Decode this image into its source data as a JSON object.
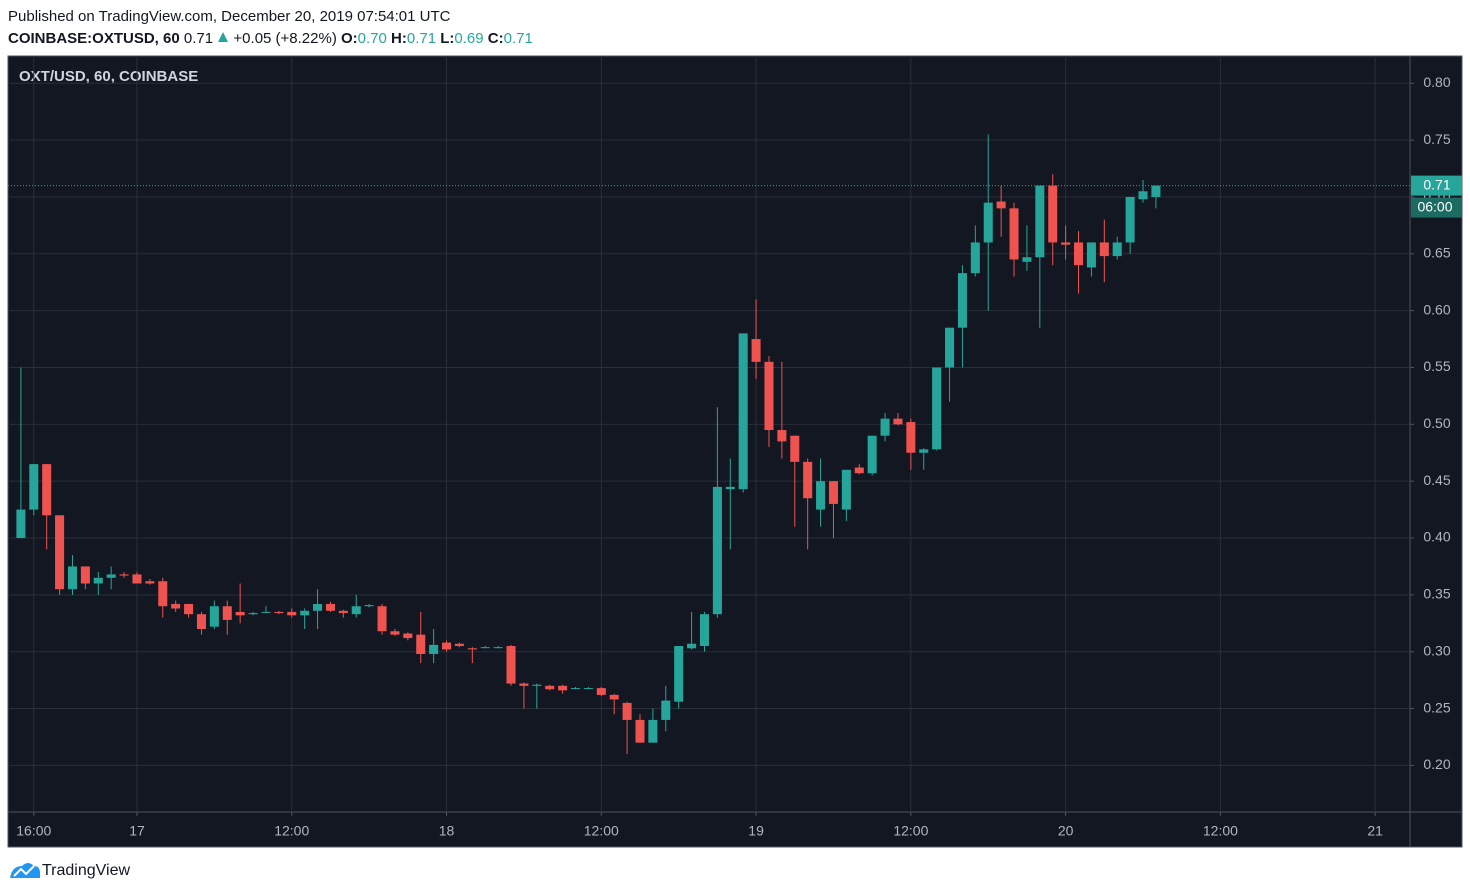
{
  "header": {
    "published": "Published on TradingView.com, December 20, 2019 07:54:01 UTC",
    "symbol": "COINBASE:OXTUSD, 60",
    "last": "0.71",
    "change": "+0.05 (+8.22%)",
    "ohlc": [
      {
        "label": "O:",
        "value": "0.70"
      },
      {
        "label": "H:",
        "value": "0.71"
      },
      {
        "label": "L:",
        "value": "0.69"
      },
      {
        "label": "C:",
        "value": "0.71"
      }
    ]
  },
  "chart_data": {
    "type": "candlestick",
    "title": "OXT/USD, 60, COINBASE",
    "x": [
      15,
      16,
      17,
      18,
      19,
      20,
      21,
      22,
      23,
      24,
      25,
      26,
      27,
      28,
      29,
      30,
      31,
      32,
      33,
      34,
      35,
      36,
      37,
      38,
      39,
      40,
      41,
      42,
      43,
      44,
      45,
      46,
      47,
      48,
      49,
      50,
      51,
      52,
      53,
      54,
      55,
      56,
      57,
      58,
      59,
      60,
      61,
      62,
      63,
      64,
      65,
      66,
      67,
      68,
      69,
      70,
      71,
      72,
      73,
      74,
      75,
      76,
      77,
      78,
      79,
      80,
      81,
      82,
      83,
      84,
      85,
      86,
      87,
      88,
      89,
      90,
      91,
      92,
      93,
      94,
      95,
      96,
      97,
      98,
      99,
      100,
      101,
      102,
      103
    ],
    "open": [
      0.4,
      0.425,
      0.465,
      0.42,
      0.355,
      0.375,
      0.36,
      0.365,
      0.368,
      0.368,
      0.362,
      0.362,
      0.342,
      0.342,
      0.333,
      0.322,
      0.34,
      0.335,
      0.333,
      0.335,
      0.335,
      0.335,
      0.332,
      0.336,
      0.342,
      0.336,
      0.333,
      0.34,
      0.34,
      0.318,
      0.316,
      0.315,
      0.298,
      0.308,
      0.307,
      0.303,
      0.304,
      0.304,
      0.305,
      0.272,
      0.27,
      0.27,
      0.27,
      0.268,
      0.268,
      0.268,
      0.262,
      0.255,
      0.24,
      0.22,
      0.24,
      0.256,
      0.303,
      0.305,
      0.333,
      0.443,
      0.443,
      0.575,
      0.555,
      0.495,
      0.49,
      0.467,
      0.425,
      0.45,
      0.425,
      0.462,
      0.457,
      0.49,
      0.505,
      0.502,
      0.475,
      0.478,
      0.55,
      0.585,
      0.633,
      0.66,
      0.696,
      0.69,
      0.643,
      0.647,
      0.71,
      0.66,
      0.66,
      0.638,
      0.66,
      0.648,
      0.66,
      0.698,
      0.7
    ],
    "high": [
      0.55,
      0.465,
      0.465,
      0.42,
      0.385,
      0.375,
      0.37,
      0.375,
      0.37,
      0.37,
      0.364,
      0.365,
      0.345,
      0.342,
      0.335,
      0.345,
      0.345,
      0.36,
      0.335,
      0.34,
      0.336,
      0.338,
      0.338,
      0.355,
      0.344,
      0.337,
      0.35,
      0.342,
      0.342,
      0.32,
      0.317,
      0.335,
      0.32,
      0.31,
      0.308,
      0.304,
      0.305,
      0.305,
      0.306,
      0.273,
      0.272,
      0.271,
      0.271,
      0.269,
      0.269,
      0.269,
      0.263,
      0.256,
      0.245,
      0.25,
      0.27,
      0.305,
      0.335,
      0.335,
      0.515,
      0.47,
      0.58,
      0.61,
      0.56,
      0.555,
      0.49,
      0.47,
      0.47,
      0.45,
      0.46,
      0.465,
      0.49,
      0.51,
      0.51,
      0.505,
      0.479,
      0.55,
      0.585,
      0.64,
      0.675,
      0.755,
      0.71,
      0.695,
      0.675,
      0.71,
      0.72,
      0.675,
      0.67,
      0.66,
      0.68,
      0.665,
      0.7,
      0.715,
      0.71
    ],
    "low": [
      0.4,
      0.42,
      0.39,
      0.35,
      0.35,
      0.355,
      0.35,
      0.355,
      0.365,
      0.36,
      0.359,
      0.33,
      0.335,
      0.33,
      0.315,
      0.32,
      0.315,
      0.325,
      0.332,
      0.334,
      0.333,
      0.33,
      0.32,
      0.32,
      0.335,
      0.33,
      0.33,
      0.339,
      0.315,
      0.314,
      0.31,
      0.29,
      0.29,
      0.3,
      0.304,
      0.29,
      0.303,
      0.303,
      0.27,
      0.25,
      0.25,
      0.266,
      0.263,
      0.267,
      0.267,
      0.261,
      0.245,
      0.21,
      0.22,
      0.22,
      0.23,
      0.25,
      0.302,
      0.3,
      0.33,
      0.39,
      0.44,
      0.54,
      0.48,
      0.47,
      0.41,
      0.39,
      0.41,
      0.4,
      0.415,
      0.456,
      0.455,
      0.485,
      0.499,
      0.46,
      0.46,
      0.477,
      0.52,
      0.55,
      0.63,
      0.6,
      0.665,
      0.63,
      0.635,
      0.585,
      0.64,
      0.645,
      0.615,
      0.63,
      0.625,
      0.645,
      0.65,
      0.695,
      0.69
    ],
    "close": [
      0.425,
      0.465,
      0.42,
      0.355,
      0.375,
      0.36,
      0.365,
      0.368,
      0.367,
      0.36,
      0.36,
      0.34,
      0.338,
      0.333,
      0.32,
      0.34,
      0.328,
      0.332,
      0.334,
      0.335,
      0.334,
      0.332,
      0.336,
      0.342,
      0.336,
      0.334,
      0.34,
      0.341,
      0.318,
      0.315,
      0.312,
      0.298,
      0.306,
      0.302,
      0.305,
      0.302,
      0.304,
      0.304,
      0.272,
      0.27,
      0.271,
      0.267,
      0.266,
      0.268,
      0.268,
      0.262,
      0.258,
      0.24,
      0.22,
      0.24,
      0.257,
      0.305,
      0.307,
      0.333,
      0.445,
      0.445,
      0.58,
      0.555,
      0.495,
      0.485,
      0.467,
      0.435,
      0.45,
      0.43,
      0.46,
      0.457,
      0.49,
      0.505,
      0.5,
      0.475,
      0.478,
      0.55,
      0.585,
      0.633,
      0.66,
      0.695,
      0.69,
      0.645,
      0.647,
      0.71,
      0.66,
      0.658,
      0.64,
      0.66,
      0.648,
      0.66,
      0.7,
      0.705,
      0.71
    ],
    "up_color": "#26a69a",
    "down_color": "#ef5350",
    "xlim": [
      14,
      122.7
    ],
    "xticks": [
      {
        "value": 16,
        "label": "16:00"
      },
      {
        "value": 24,
        "label": "17"
      },
      {
        "value": 36,
        "label": "12:00"
      },
      {
        "value": 48,
        "label": "18"
      },
      {
        "value": 60,
        "label": "12:00"
      },
      {
        "value": 72,
        "label": "19"
      },
      {
        "value": 84,
        "label": "12:00"
      },
      {
        "value": 96,
        "label": "20"
      },
      {
        "value": 108,
        "label": "12:00"
      },
      {
        "value": 120,
        "label": "21"
      }
    ],
    "ylim": [
      0.159,
      0.824
    ],
    "yticks": [
      {
        "value": 0.2,
        "label": "0.20"
      },
      0.25,
      {
        "value": 0.3,
        "label": "0.30"
      },
      0.35,
      {
        "value": 0.4,
        "label": "0.40"
      },
      0.45,
      {
        "value": 0.5,
        "label": "0.50"
      },
      0.55,
      {
        "value": 0.6,
        "label": "0.60"
      },
      0.65,
      {
        "value": 0.7,
        "label": "0.70"
      },
      0.75,
      {
        "value": 0.8,
        "label": "0.80"
      }
    ],
    "last_price": 0.71,
    "countdown": "06:00",
    "grid": true
  },
  "footer": {
    "logo": "TradingView"
  }
}
